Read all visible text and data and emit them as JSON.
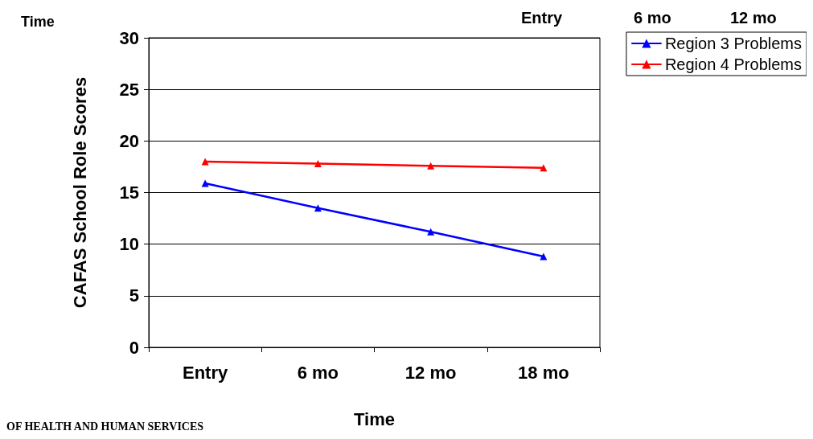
{
  "chart_data": {
    "type": "line",
    "xlabel": "Time",
    "ylabel": "CAFAS School Role Scores",
    "categories": [
      "Entry",
      "6 mo",
      "12 mo",
      "18 mo"
    ],
    "series": [
      {
        "name": "Region 3 Problems",
        "color": "#0000ff",
        "values": [
          15.9,
          13.5,
          11.2,
          8.8
        ]
      },
      {
        "name": "Region 4 Problems",
        "color": "#ff0000",
        "values": [
          18.0,
          17.8,
          17.6,
          17.4
        ]
      }
    ],
    "ylim": [
      0,
      30
    ],
    "yticks": [
      0,
      5,
      10,
      15,
      20,
      25,
      30
    ],
    "grid": "y",
    "legend": "top right",
    "marker": "triangle",
    "line_style": "solid",
    "annotations": [
      "Time",
      "Entry",
      "6 mo",
      "12 mo",
      "OF HEALTH AND HUMAN SERVICES"
    ]
  }
}
